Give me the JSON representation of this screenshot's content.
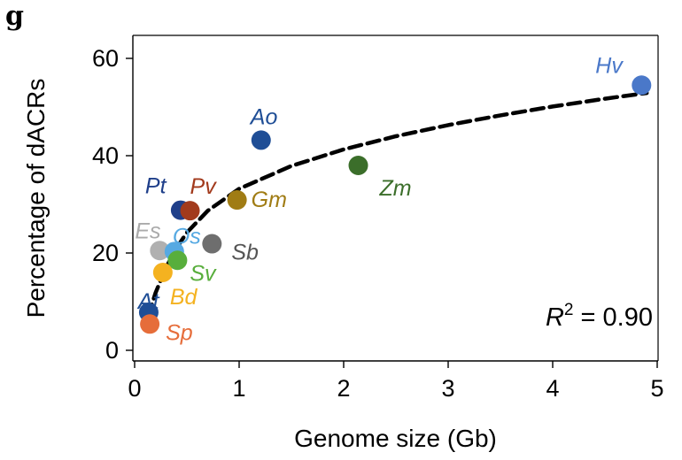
{
  "panel_label": "g",
  "chart_data": {
    "type": "scatter",
    "xlabel": "Genome size (Gb)",
    "ylabel": "Percentage of dACRs",
    "xlim": [
      0,
      5
    ],
    "ylim": [
      0,
      60
    ],
    "xticks": [
      0,
      1,
      2,
      3,
      4,
      5
    ],
    "yticks": [
      0,
      20,
      40,
      60
    ],
    "grid": false,
    "points": [
      {
        "label": "Hv",
        "x": 4.85,
        "y": 54.5,
        "color": "#4a78c9",
        "label_color": "#4a78c9"
      },
      {
        "label": "Ao",
        "x": 1.21,
        "y": 43.2,
        "color": "#1f4e96",
        "label_color": "#1f4e96"
      },
      {
        "label": "Zm",
        "x": 2.14,
        "y": 38.0,
        "color": "#3b6e2a",
        "label_color": "#3b6e2a"
      },
      {
        "label": "Gm",
        "x": 0.98,
        "y": 30.9,
        "color": "#a07c14",
        "label_color": "#a07c14"
      },
      {
        "label": "Pt",
        "x": 0.44,
        "y": 28.8,
        "color": "#1f3f8a",
        "label_color": "#1f3f8a"
      },
      {
        "label": "Pv",
        "x": 0.53,
        "y": 28.7,
        "color": "#a23a1c",
        "label_color": "#a23a1c"
      },
      {
        "label": "Sb",
        "x": 0.74,
        "y": 21.9,
        "color": "#6e6e6e",
        "label_color": "#555555"
      },
      {
        "label": "Es",
        "x": 0.24,
        "y": 20.5,
        "color": "#b0b0b0",
        "label_color": "#aaaaaa"
      },
      {
        "label": "Os",
        "x": 0.38,
        "y": 20.3,
        "color": "#56a9e2",
        "label_color": "#56a9e2"
      },
      {
        "label": "Sv",
        "x": 0.41,
        "y": 18.5,
        "color": "#58ae3c",
        "label_color": "#58ae3c"
      },
      {
        "label": "Bd",
        "x": 0.27,
        "y": 16.0,
        "color": "#f4b220",
        "label_color": "#f4b220"
      },
      {
        "label": "At",
        "x": 0.135,
        "y": 7.8,
        "color": "#1f4e96",
        "label_color": "#1f4e96"
      },
      {
        "label": "Sp",
        "x": 0.145,
        "y": 5.4,
        "color": "#e66d3a",
        "label_color": "#e66d3a"
      }
    ],
    "fit_curve": {
      "style": "dashed",
      "color": "#000000",
      "x": [
        0.13,
        0.2,
        0.3,
        0.4,
        0.5,
        0.7,
        1.0,
        1.5,
        2.0,
        2.5,
        3.0,
        3.5,
        4.0,
        4.5,
        4.9
      ],
      "y": [
        7.0,
        11.8,
        17.0,
        21.0,
        24.2,
        28.7,
        33.2,
        37.9,
        41.3,
        44.0,
        46.3,
        48.3,
        50.1,
        51.7,
        52.9
      ]
    },
    "annotation": {
      "prefix": "R",
      "superscript": "2",
      "suffix": " = 0.90",
      "position": "bottom-right"
    }
  }
}
